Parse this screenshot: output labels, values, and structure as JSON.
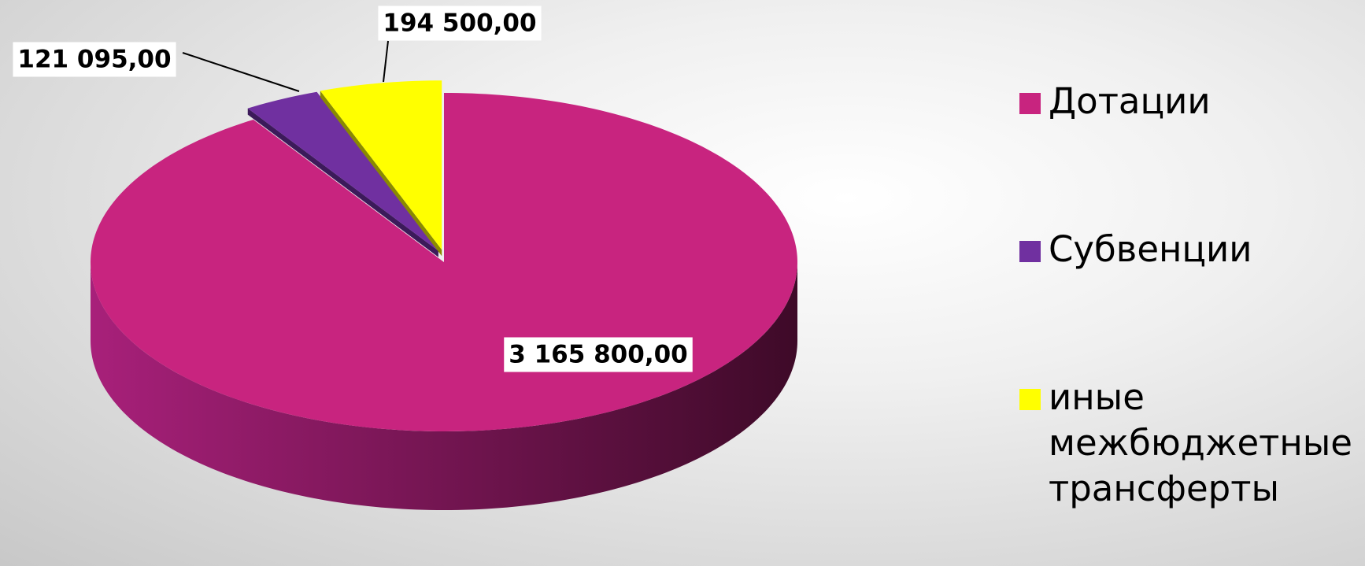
{
  "chart_data": {
    "type": "pie3d",
    "categories": [
      "Дотации",
      "Субвенции",
      "иные межбюджетные трансферты"
    ],
    "values": [
      3165800,
      121095,
      194500
    ],
    "value_labels": [
      "3 165 800,00",
      "121 095,00",
      "194 500,00"
    ],
    "colors": [
      "#c8247f",
      "#7030a0",
      "#ffff00"
    ],
    "legend": "right"
  }
}
